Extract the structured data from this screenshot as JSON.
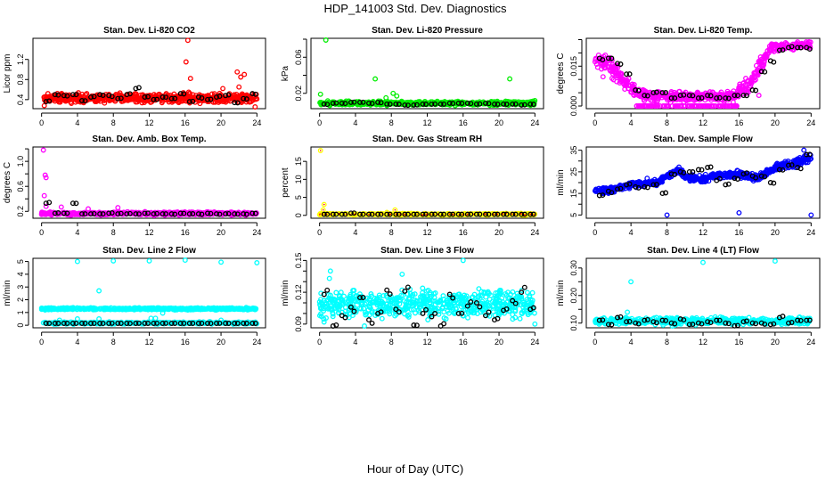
{
  "title": "HDP_141003  Std. Dev. Diagnostics",
  "xlabel": "Hour of Day (UTC)",
  "chart_data": [
    {
      "type": "scatter",
      "title": "Stan. Dev. Li-820 CO2",
      "ylabel": "Licor ppm",
      "color": "#ff0000",
      "xlim": [
        0,
        24
      ],
      "xticks": [
        0,
        4,
        8,
        12,
        16,
        20,
        24
      ],
      "ylim": [
        0.22,
        1.62
      ],
      "yticks": [
        0.4,
        0.8,
        1.2
      ],
      "yticklabels": [
        "0.4",
        "0.8",
        "1.2"
      ],
      "bands": [
        {
          "n": 600,
          "pts": [
            [
              0,
              0.3,
              0.56
            ],
            [
              24,
              0.3,
              0.56
            ]
          ]
        }
      ],
      "outliers": [
        [
          16.3,
          1.58
        ],
        [
          16.1,
          1.15
        ],
        [
          16.6,
          0.82
        ],
        [
          21.8,
          0.95
        ],
        [
          22.2,
          0.85
        ],
        [
          22.6,
          0.9
        ],
        [
          22,
          0.65
        ],
        [
          20.2,
          0.62
        ],
        [
          16.4,
          0.55
        ],
        [
          23.8,
          0.25
        ],
        [
          0.3,
          0.28
        ]
      ],
      "black_start": 0.5,
      "black_step": 1,
      "black_y": [
        0.36,
        0.5,
        0.48,
        0.5,
        0.38,
        0.45,
        0.5,
        0.48,
        0.42,
        0.5,
        0.62,
        0.45,
        0.4,
        0.45,
        0.42,
        0.52,
        0.36,
        0.45,
        0.4,
        0.45,
        0.48,
        0.34,
        0.42,
        0.52
      ]
    },
    {
      "type": "scatter",
      "title": "Stan. Dev. Li-820 Pressure",
      "ylabel": "kPa",
      "color": "#00ee00",
      "xlim": [
        0,
        24
      ],
      "xticks": [
        0,
        4,
        8,
        12,
        16,
        20,
        24
      ],
      "ylim": [
        0.003,
        0.081
      ],
      "yticks": [
        0.02,
        0.04,
        0.06,
        0.08
      ],
      "yticklabels": [
        "0.02",
        "",
        "0.06",
        ""
      ],
      "bands": [
        {
          "n": 600,
          "pts": [
            [
              0,
              0.006,
              0.012
            ],
            [
              24,
              0.006,
              0.012
            ]
          ]
        }
      ],
      "outliers": [
        [
          0.1,
          0.019
        ],
        [
          0.7,
          0.079
        ],
        [
          6.2,
          0.036
        ],
        [
          21.2,
          0.036
        ],
        [
          8.2,
          0.02
        ],
        [
          8.6,
          0.017
        ],
        [
          24,
          0.012
        ],
        [
          7.4,
          0.015
        ]
      ],
      "black_start": 0.5,
      "black_step": 1,
      "black_y": [
        0.008,
        0.009,
        0.009,
        0.01,
        0.01,
        0.009,
        0.01,
        0.008,
        0.008,
        0.007,
        0.007,
        0.008,
        0.008,
        0.008,
        0.009,
        0.009,
        0.009,
        0.008,
        0.009,
        0.008,
        0.008,
        0.008,
        0.007,
        0.008
      ]
    },
    {
      "type": "scatter",
      "title": "Stan. Dev. Li-820 Temp.",
      "ylabel": "degrees C",
      "color": "#ff00ff",
      "xlim": [
        0,
        24
      ],
      "xticks": [
        0,
        4,
        8,
        12,
        16,
        20,
        24
      ],
      "ylim": [
        -0.001,
        0.0255
      ],
      "yticks": [
        0,
        0.005,
        0.01,
        0.015,
        0.02,
        0.025
      ],
      "yticklabels": [
        "0.000",
        "",
        "",
        "0.015",
        "",
        ""
      ],
      "bands": [
        {
          "n": 650,
          "pts": [
            [
              0,
              0.014,
              0.021
            ],
            [
              1.5,
              0.011,
              0.02
            ],
            [
              3,
              0.006,
              0.015
            ],
            [
              4.5,
              0.002,
              0.008
            ],
            [
              6,
              0.001,
              0.006
            ],
            [
              12,
              0.001,
              0.006
            ],
            [
              15.5,
              0.001,
              0.007
            ],
            [
              17,
              0.003,
              0.012
            ],
            [
              18.5,
              0.012,
              0.02
            ],
            [
              19.5,
              0.02,
              0.024
            ],
            [
              24,
              0.021,
              0.025
            ]
          ]
        },
        {
          "n": 120,
          "pts": [
            [
              4.5,
              0,
              0
            ],
            [
              16,
              0,
              0
            ]
          ]
        }
      ],
      "outliers": [
        [
          0.9,
          0.011
        ],
        [
          16.1,
          0.007
        ],
        [
          18.2,
          0.004
        ]
      ],
      "black_start": 0.5,
      "black_step": 1,
      "black_y": [
        0.018,
        0.018,
        0.016,
        0.012,
        0.006,
        0.004,
        0.005,
        0.005,
        0.003,
        0.004,
        0.004,
        0.003,
        0.004,
        0.003,
        0.003,
        0.004,
        0.004,
        0.006,
        0.013,
        0.017,
        0.021,
        0.022,
        0.022,
        0.022
      ]
    },
    {
      "type": "scatter",
      "title": "Stan. Dev. Amb. Box Temp.",
      "ylabel": "degrees C",
      "color": "#ff00ff",
      "xlim": [
        0,
        24
      ],
      "xticks": [
        0,
        4,
        8,
        12,
        16,
        20,
        24
      ],
      "ylim": [
        0.09,
        1.23
      ],
      "yticks": [
        0.2,
        0.4,
        0.6,
        0.8,
        1.0,
        1.2
      ],
      "yticklabels": [
        "0.2",
        "",
        "0.6",
        "",
        "1.0",
        ""
      ],
      "bands": [
        {
          "n": 550,
          "pts": [
            [
              0,
              0.13,
              0.2
            ],
            [
              24,
              0.13,
              0.2
            ]
          ]
        }
      ],
      "outliers": [
        [
          0.2,
          1.18
        ],
        [
          0.4,
          0.78
        ],
        [
          0.5,
          0.74
        ],
        [
          0.3,
          0.45
        ],
        [
          0.5,
          0.28
        ],
        [
          2.2,
          0.27
        ],
        [
          5.2,
          0.24
        ],
        [
          8.5,
          0.26
        ],
        [
          0,
          0.15
        ]
      ],
      "black_start": 0.5,
      "black_step": 1,
      "black_y": [
        0.33,
        0.17,
        0.17,
        0.33,
        0.16,
        0.16,
        0.16,
        0.17,
        0.16,
        0.16,
        0.16,
        0.17,
        0.16,
        0.16,
        0.16,
        0.17,
        0.16,
        0.16,
        0.17,
        0.16,
        0.16,
        0.16,
        0.16,
        0.17
      ]
    },
    {
      "type": "scatter",
      "title": "Stan. Dev. Gas Stream RH",
      "ylabel": "percent",
      "color": "#ffff00",
      "color2": "#ff0000",
      "xlim": [
        0,
        24
      ],
      "xticks": [
        0,
        4,
        8,
        12,
        16,
        20,
        24
      ],
      "ylim": [
        -0.8,
        19
      ],
      "yticks": [
        0,
        5,
        10,
        15
      ],
      "yticklabels": [
        "0",
        "5",
        "10",
        "15"
      ],
      "bands": [
        {
          "n": 450,
          "pts": [
            [
              0,
              0,
              0.6
            ],
            [
              24,
              0,
              0.6
            ]
          ]
        }
      ],
      "outliers": [
        [
          0.1,
          18
        ],
        [
          0.5,
          3
        ],
        [
          0.4,
          1.5
        ],
        [
          8.4,
          1.5
        ],
        [
          7.5,
          0.8
        ],
        [
          0,
          0.2
        ]
      ],
      "black_start": 0.5,
      "black_step": 1,
      "black_y": [
        0.3,
        0.3,
        0.3,
        0.6,
        0.3,
        0.3,
        0.3,
        0.3,
        0.3,
        0.3,
        0.3,
        0.3,
        0.3,
        0.3,
        0.3,
        0.3,
        0.3,
        0.3,
        0.3,
        0.3,
        0.3,
        0.3,
        0.3,
        0.3
      ]
    },
    {
      "type": "scatter",
      "title": "Stan. Dev. Sample Flow",
      "ylabel": "ml/min",
      "color": "#0000ff",
      "xlim": [
        0,
        24
      ],
      "xticks": [
        0,
        4,
        8,
        12,
        16,
        20,
        24
      ],
      "ylim": [
        3.5,
        36.5
      ],
      "yticks": [
        5,
        10,
        15,
        20,
        25,
        30,
        35
      ],
      "yticklabels": [
        "5",
        "",
        "15",
        "",
        "25",
        "",
        "35"
      ],
      "bands": [
        {
          "n": 650,
          "pts": [
            [
              0,
              14,
              18
            ],
            [
              2,
              15,
              19
            ],
            [
              4,
              17,
              21
            ],
            [
              7,
              18,
              22
            ],
            [
              8,
              21,
              25
            ],
            [
              9.5,
              24,
              28
            ],
            [
              10,
              21,
              24
            ],
            [
              12,
              19,
              24
            ],
            [
              13,
              21,
              25
            ],
            [
              16,
              22,
              26
            ],
            [
              18,
              20,
              24
            ],
            [
              20,
              25,
              29
            ],
            [
              23,
              27,
              33
            ],
            [
              24,
              28,
              34
            ]
          ]
        }
      ],
      "outliers": [
        [
          8,
          5
        ],
        [
          16,
          6
        ],
        [
          24,
          5
        ],
        [
          23.2,
          35
        ],
        [
          5.8,
          22
        ],
        [
          1,
          15
        ]
      ],
      "black_start": 0.5,
      "black_step": 1,
      "black_y": [
        14,
        16,
        17,
        19,
        18,
        18,
        19,
        15,
        24,
        25,
        25,
        26,
        27,
        21,
        19,
        22,
        24,
        23,
        23,
        20,
        26,
        28,
        27,
        33
      ]
    },
    {
      "type": "scatter",
      "title": "Stan. Dev. Line 2 Flow",
      "ylabel": "ml/min",
      "color": "#00ffff",
      "xlim": [
        0,
        24
      ],
      "xticks": [
        0,
        4,
        8,
        12,
        16,
        20,
        24
      ],
      "ylim": [
        -0.2,
        5.25
      ],
      "yticks": [
        0,
        1,
        2,
        3,
        4,
        5
      ],
      "yticklabels": [
        "0",
        "1",
        "2",
        "3",
        "4",
        "5"
      ],
      "bands": [
        {
          "n": 550,
          "pts": [
            [
              0,
              1.18,
              1.4
            ],
            [
              24,
              1.18,
              1.4
            ]
          ]
        },
        {
          "n": 350,
          "pts": [
            [
              0,
              0.05,
              0.3
            ],
            [
              24,
              0.05,
              0.3
            ]
          ]
        }
      ],
      "outliers": [
        [
          4,
          5
        ],
        [
          8,
          5.05
        ],
        [
          12,
          5.05
        ],
        [
          16,
          5.1
        ],
        [
          20,
          4.95
        ],
        [
          24,
          4.9
        ],
        [
          6.4,
          2.7
        ],
        [
          13.5,
          0.95
        ],
        [
          4,
          0.5
        ],
        [
          6.4,
          0.5
        ],
        [
          12.2,
          0.55
        ],
        [
          12.7,
          0.55
        ],
        [
          20,
          0.4
        ],
        [
          2,
          0.4
        ]
      ],
      "black_start": 0.5,
      "black_step": 1,
      "black_y": [
        0.15,
        0.15,
        0.15,
        0.15,
        0.15,
        0.15,
        0.15,
        0.15,
        0.15,
        0.15,
        0.15,
        0.15,
        0.15,
        0.15,
        0.15,
        0.15,
        0.15,
        0.15,
        0.15,
        0.15,
        0.15,
        0.15,
        0.15,
        0.15
      ]
    },
    {
      "type": "scatter",
      "title": "Stan. Dev. Line 3 Flow",
      "ylabel": "ml/min",
      "color": "#00ffff",
      "xlim": [
        0,
        24
      ],
      "xticks": [
        0,
        4,
        8,
        12,
        16,
        20,
        24
      ],
      "ylim": [
        0.0865,
        0.152
      ],
      "yticks": [
        0.09,
        0.1,
        0.11,
        0.12,
        0.13,
        0.14,
        0.15
      ],
      "yticklabels": [
        "0.09",
        "",
        "",
        "0.12",
        "",
        "",
        "0.15"
      ],
      "bands": [
        {
          "n": 650,
          "pts": [
            [
              0,
              0.092,
              0.126
            ],
            [
              24,
              0.092,
              0.126
            ]
          ]
        }
      ],
      "outliers": [
        [
          1.2,
          0.14
        ],
        [
          1.1,
          0.133
        ],
        [
          16,
          0.15
        ],
        [
          0.5,
          0.092
        ],
        [
          24,
          0.09
        ],
        [
          9.2,
          0.137
        ],
        [
          5,
          0.088
        ]
      ],
      "black_start": 0.5,
      "black_step": 1,
      "black_y": [
        0.118,
        0.088,
        0.098,
        0.106,
        0.115,
        0.094,
        0.1,
        0.122,
        0.104,
        0.121,
        0.089,
        0.1,
        0.097,
        0.088,
        0.118,
        0.1,
        0.107,
        0.11,
        0.098,
        0.094,
        0.103,
        0.112,
        0.12,
        0.104
      ]
    },
    {
      "type": "scatter",
      "title": "Stan. Dev. Line 4 (LT) Flow",
      "ylabel": "ml/min",
      "color": "#00ffff",
      "xlim": [
        0,
        24
      ],
      "xticks": [
        0,
        4,
        8,
        12,
        16,
        20,
        24
      ],
      "ylim": [
        0.083,
        0.335
      ],
      "yticks": [
        0.1,
        0.15,
        0.2,
        0.25,
        0.3
      ],
      "yticklabels": [
        "0.10",
        "",
        "0.20",
        "",
        "0.30"
      ],
      "bands": [
        {
          "n": 550,
          "pts": [
            [
              0,
              0.09,
              0.125
            ],
            [
              24,
              0.09,
              0.125
            ]
          ]
        }
      ],
      "outliers": [
        [
          4,
          0.25
        ],
        [
          12,
          0.32
        ],
        [
          20,
          0.325
        ],
        [
          3.6,
          0.14
        ],
        [
          8.6,
          0.085
        ]
      ],
      "black_start": 0.5,
      "black_step": 1,
      "black_y": [
        0.11,
        0.095,
        0.12,
        0.105,
        0.1,
        0.11,
        0.105,
        0.11,
        0.1,
        0.115,
        0.095,
        0.1,
        0.105,
        0.11,
        0.1,
        0.09,
        0.105,
        0.1,
        0.1,
        0.095,
        0.12,
        0.1,
        0.11,
        0.11
      ]
    }
  ]
}
